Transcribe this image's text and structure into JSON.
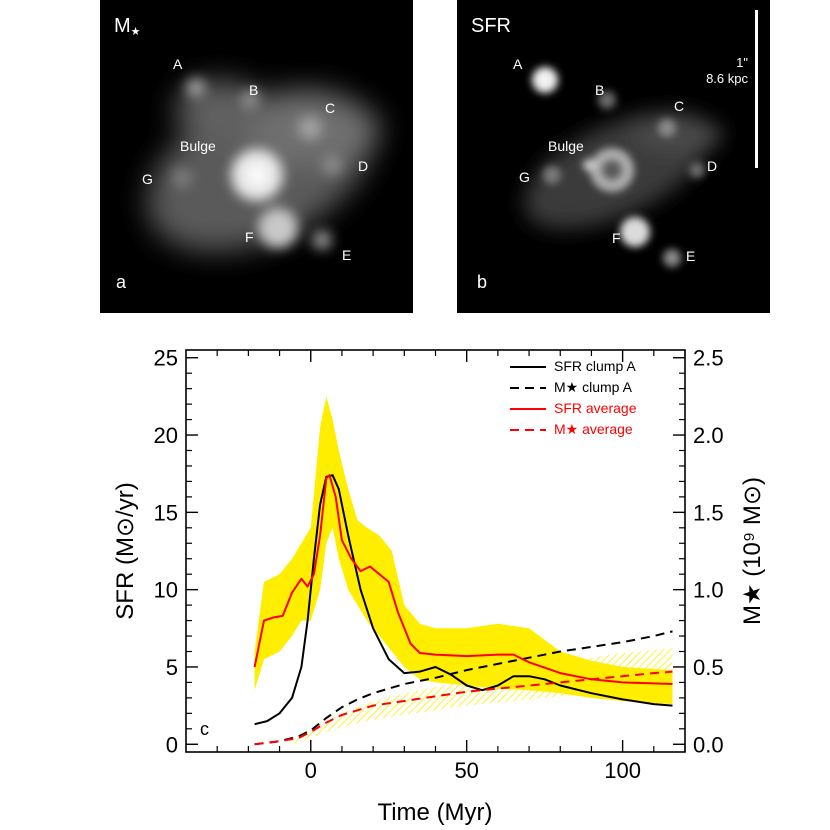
{
  "panels": {
    "a": {
      "title_main": "M",
      "title_sub": "★",
      "letter": "a",
      "labels": {
        "A": "A",
        "B": "B",
        "C": "C",
        "D": "D",
        "E": "E",
        "F": "F",
        "G": "G",
        "bulge": "Bulge"
      }
    },
    "b": {
      "title": "SFR",
      "letter": "b",
      "labels": {
        "A": "A",
        "B": "B",
        "C": "C",
        "D": "D",
        "E": "E",
        "F": "F",
        "G": "G",
        "bulge": "Bulge"
      },
      "scale_arcsec": "1\"",
      "scale_kpc": "8.6 kpc"
    }
  },
  "chart_data": {
    "type": "line",
    "panel_letter": "c",
    "xlabel": "Time (Myr)",
    "ylabel_left": "SFR (M⊙/yr)",
    "ylabel_right": "M★ (10⁹ M⊙)",
    "xlim": [
      -40,
      120
    ],
    "ylim_left": [
      -0.5,
      25.5
    ],
    "ylim_right": [
      -0.05,
      2.55
    ],
    "x_ticks": [
      0,
      50,
      100
    ],
    "x_tick_labels": [
      "0",
      "50",
      "100"
    ],
    "y_left_ticks": [
      0,
      5,
      10,
      15,
      20,
      25
    ],
    "y_left_tick_labels": [
      "0",
      "5",
      "10",
      "15",
      "20",
      "25"
    ],
    "y_right_ticks": [
      0.0,
      0.5,
      1.0,
      1.5,
      2.0,
      2.5
    ],
    "y_right_tick_labels": [
      "0.0",
      "0.5",
      "1.0",
      "1.5",
      "2.0",
      "2.5"
    ],
    "legend_position": "top-right",
    "series": [
      {
        "name": "SFR clump A",
        "axis": "left",
        "color": "#000000",
        "dash": "solid",
        "x": [
          -18,
          -14,
          -10,
          -6,
          -3,
          -1,
          1,
          3,
          5,
          7,
          9,
          12,
          16,
          20,
          25,
          30,
          35,
          40,
          45,
          50,
          55,
          60,
          65,
          70,
          75,
          80,
          90,
          100,
          110,
          116
        ],
        "y": [
          1.3,
          1.5,
          2.0,
          3.0,
          5.0,
          8.0,
          12.0,
          15.5,
          17.3,
          17.4,
          16.5,
          13.5,
          10.0,
          7.5,
          5.5,
          4.6,
          4.7,
          5.0,
          4.5,
          3.8,
          3.5,
          3.8,
          4.4,
          4.4,
          4.2,
          3.8,
          3.3,
          2.9,
          2.6,
          2.5
        ]
      },
      {
        "name": "M★ clump A",
        "axis": "right",
        "color": "#000000",
        "dash": "dashed",
        "x": [
          -18,
          -10,
          -4,
          0,
          5,
          10,
          15,
          20,
          30,
          40,
          50,
          60,
          70,
          80,
          90,
          100,
          110,
          116
        ],
        "y": [
          0.0,
          0.02,
          0.05,
          0.09,
          0.17,
          0.24,
          0.29,
          0.33,
          0.39,
          0.43,
          0.48,
          0.52,
          0.56,
          0.6,
          0.63,
          0.66,
          0.7,
          0.73
        ]
      },
      {
        "name": "SFR average",
        "axis": "left",
        "color": "#ff0000",
        "dash": "solid",
        "x": [
          -18,
          -15,
          -12,
          -9,
          -6,
          -3,
          -1,
          1,
          3,
          5,
          6,
          8,
          10,
          13,
          16,
          19,
          22,
          25,
          28,
          32,
          35,
          40,
          50,
          60,
          65,
          70,
          80,
          90,
          100,
          116
        ],
        "y": [
          5.0,
          8.0,
          8.2,
          8.3,
          9.8,
          10.7,
          10.2,
          11.0,
          13.5,
          17.2,
          17.4,
          16.0,
          13.2,
          12.0,
          11.2,
          11.5,
          11.0,
          10.5,
          8.5,
          6.5,
          5.9,
          5.8,
          5.7,
          5.8,
          5.8,
          5.3,
          4.6,
          4.2,
          4.0,
          3.9
        ]
      },
      {
        "name": "M★ average",
        "axis": "right",
        "color": "#ff0000",
        "dash": "dashed",
        "x": [
          -18,
          -10,
          -4,
          0,
          5,
          10,
          15,
          20,
          30,
          40,
          50,
          60,
          70,
          80,
          90,
          100,
          110,
          116
        ],
        "y": [
          0.0,
          0.02,
          0.04,
          0.08,
          0.14,
          0.19,
          0.22,
          0.25,
          0.28,
          0.31,
          0.34,
          0.36,
          0.38,
          0.4,
          0.42,
          0.44,
          0.46,
          0.47
        ]
      }
    ],
    "bands": [
      {
        "name": "SFR scatter",
        "axis": "left",
        "color": "#ffee00",
        "x": [
          -18,
          -15,
          -10,
          -6,
          -3,
          0,
          3,
          5,
          7,
          9,
          12,
          15,
          18,
          22,
          26,
          30,
          35,
          40,
          50,
          60,
          70,
          80,
          90,
          100,
          116
        ],
        "upper": [
          6.0,
          10.5,
          11.0,
          12.0,
          13.0,
          14.0,
          20.5,
          22.5,
          21.0,
          19.0,
          16.5,
          14.5,
          14.0,
          13.5,
          12.5,
          9.0,
          7.8,
          7.5,
          7.5,
          7.8,
          7.5,
          6.0,
          5.4,
          5.0,
          4.8
        ],
        "lower": [
          3.5,
          5.5,
          6.0,
          7.0,
          8.0,
          8.0,
          10.0,
          13.0,
          14.0,
          12.0,
          10.0,
          9.0,
          8.0,
          7.0,
          6.0,
          5.0,
          4.2,
          4.0,
          3.8,
          3.6,
          3.5,
          3.3,
          3.0,
          2.8,
          2.6
        ]
      },
      {
        "name": "M★ scatter",
        "axis": "right",
        "color": "#ffee00",
        "hatched": true,
        "x": [
          -6,
          0,
          5,
          10,
          20,
          30,
          40,
          50,
          60,
          70,
          80,
          90,
          100,
          110,
          116
        ],
        "upper": [
          0.04,
          0.1,
          0.15,
          0.2,
          0.28,
          0.33,
          0.37,
          0.41,
          0.45,
          0.49,
          0.53,
          0.56,
          0.59,
          0.61,
          0.62
        ],
        "lower": [
          0.0,
          0.04,
          0.08,
          0.11,
          0.16,
          0.19,
          0.22,
          0.25,
          0.27,
          0.29,
          0.31,
          0.33,
          0.35,
          0.37,
          0.38
        ]
      }
    ]
  }
}
